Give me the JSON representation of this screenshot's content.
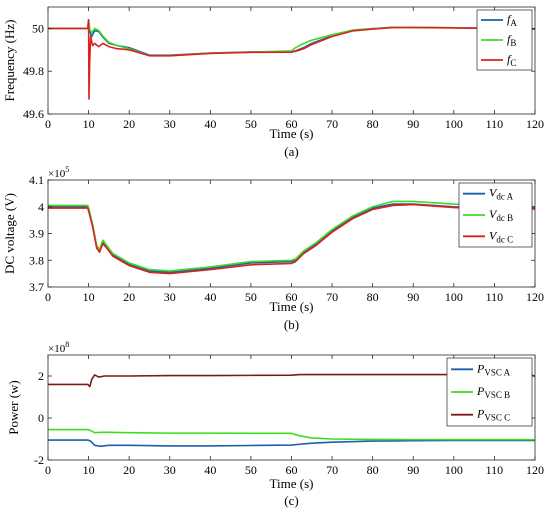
{
  "chart_data": [
    {
      "type": "line",
      "caption": "(a)",
      "xlabel": "Time (s)",
      "ylabel": "Frequency (Hz)",
      "xlim": [
        0,
        120
      ],
      "ylim": [
        49.6,
        50.1
      ],
      "xticks": [
        0,
        10,
        20,
        30,
        40,
        50,
        60,
        70,
        80,
        90,
        100,
        110,
        120
      ],
      "xtick_labels": [
        "0",
        "10",
        "20",
        "30",
        "40",
        "50",
        "60",
        "70",
        "80",
        "90",
        "100",
        "110",
        "120"
      ],
      "yticks": [
        49.6,
        49.8,
        50.0
      ],
      "ytick_labels": [
        "49.6",
        "49.8",
        "50"
      ],
      "exponent": "",
      "legend_position": "top-right",
      "grid": false,
      "series": [
        {
          "name": "fA",
          "label_main": "f",
          "label_sub": "A",
          "color": "#1f5fa8",
          "points": [
            [
              0,
              50
            ],
            [
              9.8,
              50
            ],
            [
              10,
              50.04
            ],
            [
              10.3,
              49.99
            ],
            [
              10.7,
              49.96
            ],
            [
              11.5,
              49.99
            ],
            [
              12.5,
              49.985
            ],
            [
              13.5,
              49.96
            ],
            [
              15,
              49.93
            ],
            [
              17,
              49.92
            ],
            [
              20,
              49.91
            ],
            [
              25,
              49.875
            ],
            [
              30,
              49.875
            ],
            [
              40,
              49.885
            ],
            [
              50,
              49.89
            ],
            [
              60,
              49.89
            ],
            [
              61,
              49.895
            ],
            [
              63,
              49.91
            ],
            [
              65,
              49.93
            ],
            [
              70,
              49.965
            ],
            [
              75,
              49.99
            ],
            [
              80,
              49.998
            ],
            [
              85,
              50.005
            ],
            [
              90,
              50.005
            ],
            [
              100,
              50.003
            ],
            [
              110,
              50.0
            ],
            [
              120,
              49.998
            ]
          ]
        },
        {
          "name": "fB",
          "label_main": "f",
          "label_sub": "B",
          "color": "#3ddc24",
          "points": [
            [
              0,
              50
            ],
            [
              9.8,
              50
            ],
            [
              10,
              50.03
            ],
            [
              10.3,
              49.995
            ],
            [
              10.8,
              49.98
            ],
            [
              11.5,
              50.0
            ],
            [
              12.5,
              49.99
            ],
            [
              13.5,
              49.965
            ],
            [
              15,
              49.935
            ],
            [
              17,
              49.92
            ],
            [
              20,
              49.905
            ],
            [
              25,
              49.873
            ],
            [
              30,
              49.873
            ],
            [
              40,
              49.884
            ],
            [
              50,
              49.889
            ],
            [
              60,
              49.895
            ],
            [
              61,
              49.91
            ],
            [
              63,
              49.93
            ],
            [
              65,
              49.945
            ],
            [
              70,
              49.97
            ],
            [
              75,
              49.992
            ],
            [
              80,
              49.999
            ],
            [
              85,
              50.005
            ],
            [
              90,
              50.005
            ],
            [
              100,
              50.003
            ],
            [
              110,
              50.0
            ],
            [
              120,
              49.998
            ]
          ]
        },
        {
          "name": "fC",
          "label_main": "f",
          "label_sub": "C",
          "color": "#e02020",
          "points": [
            [
              0,
              50
            ],
            [
              9.8,
              50
            ],
            [
              10,
              50.04
            ],
            [
              10.1,
              49.67
            ],
            [
              10.25,
              49.83
            ],
            [
              10.5,
              49.96
            ],
            [
              11,
              49.92
            ],
            [
              11.5,
              49.93
            ],
            [
              12.5,
              49.915
            ],
            [
              13.5,
              49.93
            ],
            [
              15,
              49.915
            ],
            [
              17,
              49.905
            ],
            [
              20,
              49.9
            ],
            [
              25,
              49.872
            ],
            [
              30,
              49.872
            ],
            [
              40,
              49.883
            ],
            [
              50,
              49.888
            ],
            [
              60,
              49.889
            ],
            [
              61,
              49.893
            ],
            [
              63,
              49.905
            ],
            [
              65,
              49.925
            ],
            [
              70,
              49.962
            ],
            [
              75,
              49.988
            ],
            [
              80,
              49.997
            ],
            [
              85,
              50.004
            ],
            [
              90,
              50.004
            ],
            [
              100,
              50.002
            ],
            [
              110,
              50.0
            ],
            [
              120,
              49.997
            ]
          ]
        }
      ]
    },
    {
      "type": "line",
      "caption": "(b)",
      "xlabel": "Time (s)",
      "ylabel": "DC voltage (V)",
      "xlim": [
        0,
        120
      ],
      "ylim": [
        3.7,
        4.1
      ],
      "xticks": [
        0,
        10,
        20,
        30,
        40,
        50,
        60,
        70,
        80,
        90,
        100,
        110,
        120
      ],
      "xtick_labels": [
        "0",
        "10",
        "20",
        "30",
        "40",
        "50",
        "60",
        "70",
        "80",
        "90",
        "100",
        "110",
        "120"
      ],
      "yticks": [
        3.7,
        3.8,
        3.9,
        4.0,
        4.1
      ],
      "ytick_labels": [
        "3.7",
        "3.8",
        "3.9",
        "4",
        "4.1"
      ],
      "exponent": "5",
      "legend_position": "top-right",
      "grid": false,
      "series": [
        {
          "name": "Vdc A",
          "label_main": "V",
          "label_sub": "dc A",
          "color": "#1f5fa8",
          "points": [
            [
              0,
              4.0
            ],
            [
              9.8,
              4.0
            ],
            [
              10,
              3.99
            ],
            [
              11,
              3.93
            ],
            [
              12,
              3.85
            ],
            [
              12.7,
              3.835
            ],
            [
              13.5,
              3.87
            ],
            [
              14.5,
              3.85
            ],
            [
              16,
              3.82
            ],
            [
              20,
              3.785
            ],
            [
              25,
              3.76
            ],
            [
              30,
              3.755
            ],
            [
              40,
              3.77
            ],
            [
              50,
              3.79
            ],
            [
              60,
              3.795
            ],
            [
              61,
              3.8
            ],
            [
              63,
              3.83
            ],
            [
              66,
              3.86
            ],
            [
              70,
              3.91
            ],
            [
              75,
              3.96
            ],
            [
              80,
              3.995
            ],
            [
              85,
              4.01
            ],
            [
              90,
              4.01
            ],
            [
              100,
              4.0
            ],
            [
              110,
              3.996
            ],
            [
              120,
              3.995
            ]
          ]
        },
        {
          "name": "Vdc B",
          "label_main": "V",
          "label_sub": "dc B",
          "color": "#3ddc24",
          "points": [
            [
              0,
              4.005
            ],
            [
              9.8,
              4.005
            ],
            [
              10,
              3.995
            ],
            [
              11,
              3.935
            ],
            [
              12,
              3.855
            ],
            [
              12.7,
              3.84
            ],
            [
              13.5,
              3.875
            ],
            [
              14.5,
              3.855
            ],
            [
              16,
              3.825
            ],
            [
              20,
              3.79
            ],
            [
              25,
              3.765
            ],
            [
              30,
              3.76
            ],
            [
              40,
              3.775
            ],
            [
              50,
              3.795
            ],
            [
              60,
              3.8
            ],
            [
              61,
              3.805
            ],
            [
              63,
              3.835
            ],
            [
              66,
              3.865
            ],
            [
              70,
              3.915
            ],
            [
              75,
              3.965
            ],
            [
              80,
              4.0
            ],
            [
              85,
              4.02
            ],
            [
              90,
              4.02
            ],
            [
              100,
              4.01
            ],
            [
              110,
              4.003
            ],
            [
              120,
              4.0
            ]
          ]
        },
        {
          "name": "Vdc C",
          "label_main": "V",
          "label_sub": "dc C",
          "color": "#e02020",
          "points": [
            [
              0,
              3.995
            ],
            [
              9.8,
              3.995
            ],
            [
              10,
              3.985
            ],
            [
              11,
              3.925
            ],
            [
              12,
              3.845
            ],
            [
              12.7,
              3.83
            ],
            [
              13.5,
              3.862
            ],
            [
              14.5,
              3.845
            ],
            [
              16,
              3.815
            ],
            [
              20,
              3.78
            ],
            [
              25,
              3.755
            ],
            [
              30,
              3.75
            ],
            [
              40,
              3.765
            ],
            [
              50,
              3.783
            ],
            [
              60,
              3.788
            ],
            [
              61,
              3.795
            ],
            [
              63,
              3.825
            ],
            [
              66,
              3.855
            ],
            [
              70,
              3.905
            ],
            [
              75,
              3.955
            ],
            [
              80,
              3.99
            ],
            [
              85,
              4.005
            ],
            [
              90,
              4.008
            ],
            [
              100,
              3.997
            ],
            [
              110,
              3.993
            ],
            [
              120,
              3.992
            ]
          ]
        }
      ]
    },
    {
      "type": "line",
      "caption": "(c)",
      "xlabel": "Time (s)",
      "ylabel": "Power (w)",
      "xlim": [
        0,
        120
      ],
      "ylim": [
        -2,
        3
      ],
      "xticks": [
        0,
        10,
        20,
        30,
        40,
        50,
        60,
        70,
        80,
        90,
        100,
        110,
        120
      ],
      "xtick_labels": [
        "0",
        "10",
        "20",
        "30",
        "40",
        "50",
        "60",
        "70",
        "80",
        "90",
        "100",
        "110",
        "120"
      ],
      "yticks": [
        -2,
        0,
        2
      ],
      "ytick_labels": [
        "-2",
        "0",
        "2"
      ],
      "exponent": "8",
      "legend_position": "top-right",
      "grid": false,
      "series": [
        {
          "name": "PVSC A",
          "label_main": "P",
          "label_sub": "VSC A",
          "color": "#1f5fa8",
          "points": [
            [
              0,
              -1.05
            ],
            [
              9.8,
              -1.05
            ],
            [
              10.5,
              -1.1
            ],
            [
              11.5,
              -1.3
            ],
            [
              13,
              -1.35
            ],
            [
              15,
              -1.3
            ],
            [
              20,
              -1.3
            ],
            [
              30,
              -1.33
            ],
            [
              40,
              -1.33
            ],
            [
              50,
              -1.31
            ],
            [
              60,
              -1.29
            ],
            [
              62,
              -1.25
            ],
            [
              65,
              -1.2
            ],
            [
              70,
              -1.15
            ],
            [
              80,
              -1.1
            ],
            [
              90,
              -1.08
            ],
            [
              100,
              -1.07
            ],
            [
              110,
              -1.07
            ],
            [
              120,
              -1.07
            ]
          ]
        },
        {
          "name": "PVSC B",
          "label_main": "P",
          "label_sub": "VSC B",
          "color": "#3ddc24",
          "points": [
            [
              0,
              -0.55
            ],
            [
              9.8,
              -0.55
            ],
            [
              10.5,
              -0.6
            ],
            [
              11.5,
              -0.7
            ],
            [
              13,
              -0.68
            ],
            [
              15,
              -0.68
            ],
            [
              20,
              -0.7
            ],
            [
              30,
              -0.72
            ],
            [
              40,
              -0.72
            ],
            [
              50,
              -0.73
            ],
            [
              60,
              -0.73
            ],
            [
              62,
              -0.85
            ],
            [
              65,
              -0.95
            ],
            [
              70,
              -1.0
            ],
            [
              80,
              -1.02
            ],
            [
              90,
              -1.03
            ],
            [
              100,
              -1.03
            ],
            [
              110,
              -1.03
            ],
            [
              120,
              -1.03
            ]
          ]
        },
        {
          "name": "PVSC C",
          "label_main": "P",
          "label_sub": "VSC C",
          "color": "#7a1a1a",
          "points": [
            [
              0,
              1.6
            ],
            [
              9.8,
              1.6
            ],
            [
              10.3,
              1.5
            ],
            [
              10.8,
              1.85
            ],
            [
              11.5,
              2.05
            ],
            [
              12.5,
              1.95
            ],
            [
              14,
              2.0
            ],
            [
              20,
              2.0
            ],
            [
              30,
              2.02
            ],
            [
              40,
              2.02
            ],
            [
              50,
              2.03
            ],
            [
              60,
              2.04
            ],
            [
              62,
              2.07
            ],
            [
              65,
              2.07
            ],
            [
              70,
              2.07
            ],
            [
              80,
              2.07
            ],
            [
              90,
              2.07
            ],
            [
              100,
              2.07
            ],
            [
              110,
              2.06
            ],
            [
              119,
              2.06
            ],
            [
              120,
              1.98
            ]
          ]
        }
      ]
    }
  ]
}
